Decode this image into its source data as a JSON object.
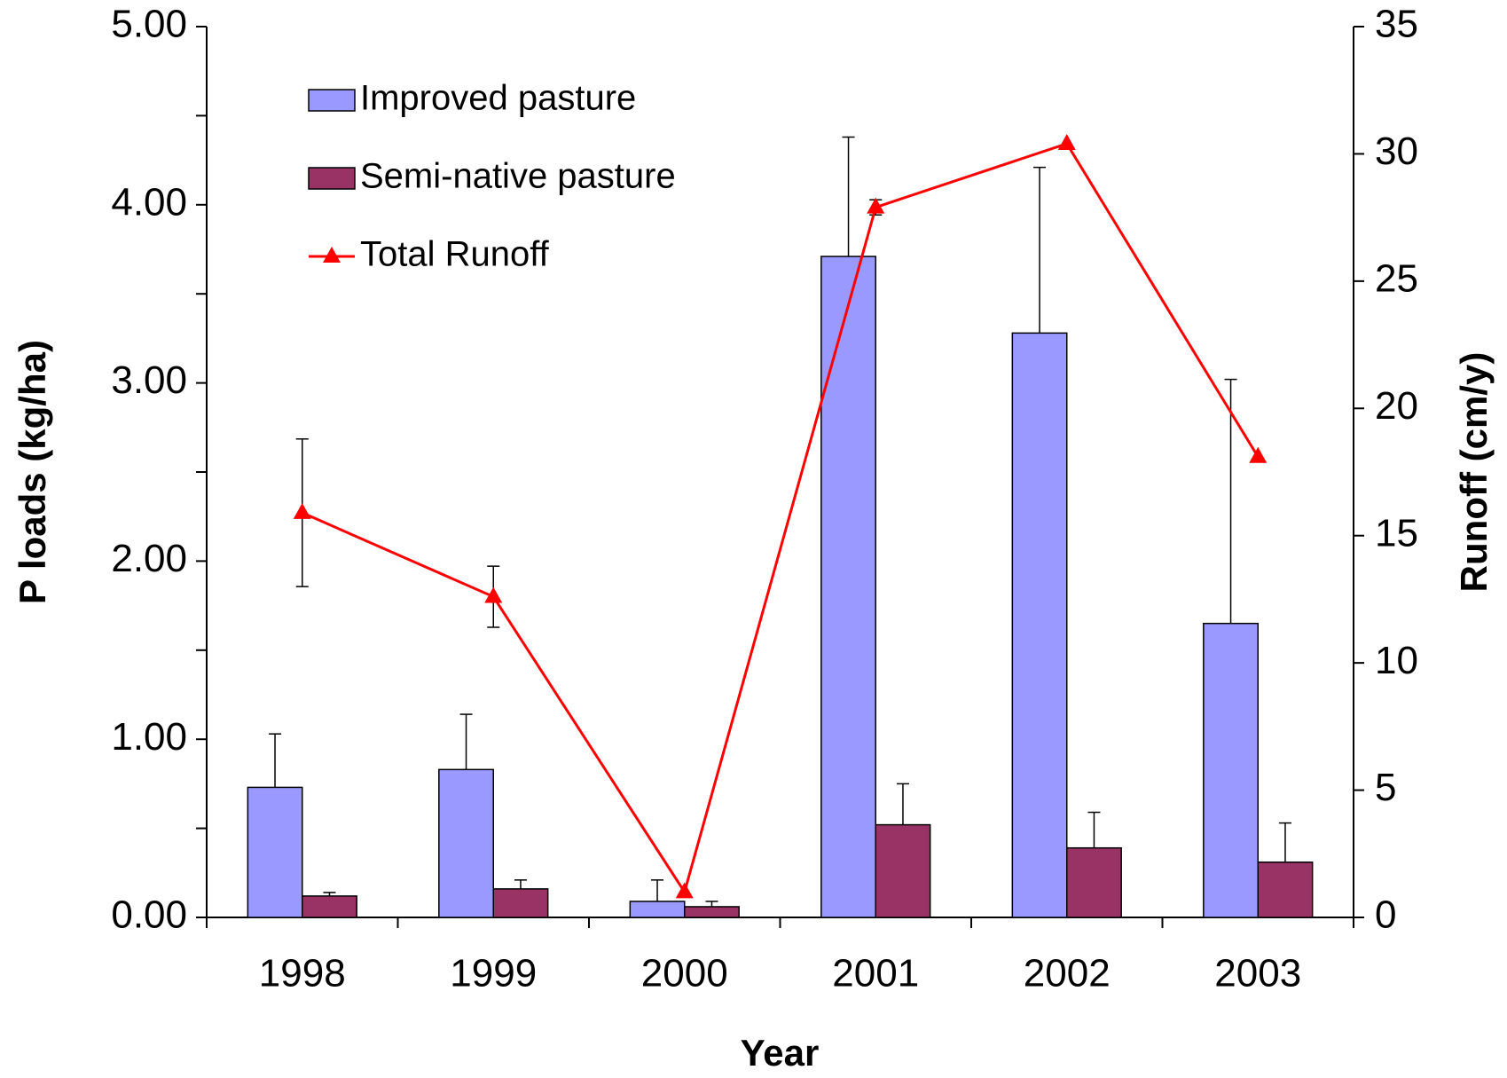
{
  "chart_data": {
    "type": "bar",
    "x_label": "Year",
    "y_label": "P loads (kg/ha)",
    "y2_label": "Runoff (cm/y)",
    "categories": [
      "1998",
      "1999",
      "2000",
      "2001",
      "2002",
      "2003"
    ],
    "series": [
      {
        "name": "Improved pasture",
        "color": "#9999ff",
        "type": "bar",
        "values": [
          0.73,
          0.83,
          0.09,
          3.71,
          3.28,
          1.65
        ],
        "errors": [
          0.3,
          0.31,
          0.12,
          0.67,
          0.93,
          1.37
        ]
      },
      {
        "name": "Semi-native pasture",
        "color": "#993366",
        "type": "bar",
        "values": [
          0.12,
          0.16,
          0.06,
          0.52,
          0.39,
          0.31
        ],
        "errors": [
          0.02,
          0.05,
          0.03,
          0.23,
          0.2,
          0.22
        ]
      },
      {
        "name": "Total Runoff",
        "color": "#ff0000",
        "type": "line",
        "axis": "y2",
        "values": [
          15.9,
          12.6,
          1.0,
          27.9,
          30.4,
          18.1
        ],
        "errors": [
          2.9,
          1.2,
          null,
          0.3,
          null,
          null
        ]
      }
    ],
    "ylim": [
      0,
      5
    ],
    "yticks": [
      {
        "value": 0,
        "label": "0.00"
      },
      {
        "value": 1,
        "label": "1.00"
      },
      {
        "value": 2,
        "label": "2.00"
      },
      {
        "value": 3,
        "label": "3.00"
      },
      {
        "value": 4,
        "label": "4.00"
      },
      {
        "value": 5,
        "label": "5.00"
      }
    ],
    "yminorticks": [
      0.5,
      1.5,
      2.5,
      3.5,
      4.5
    ],
    "y2lim": [
      0,
      35
    ],
    "y2ticks": [
      0,
      5,
      10,
      15,
      20,
      25,
      30,
      35
    ],
    "legend": "upper left",
    "grid": false
  }
}
